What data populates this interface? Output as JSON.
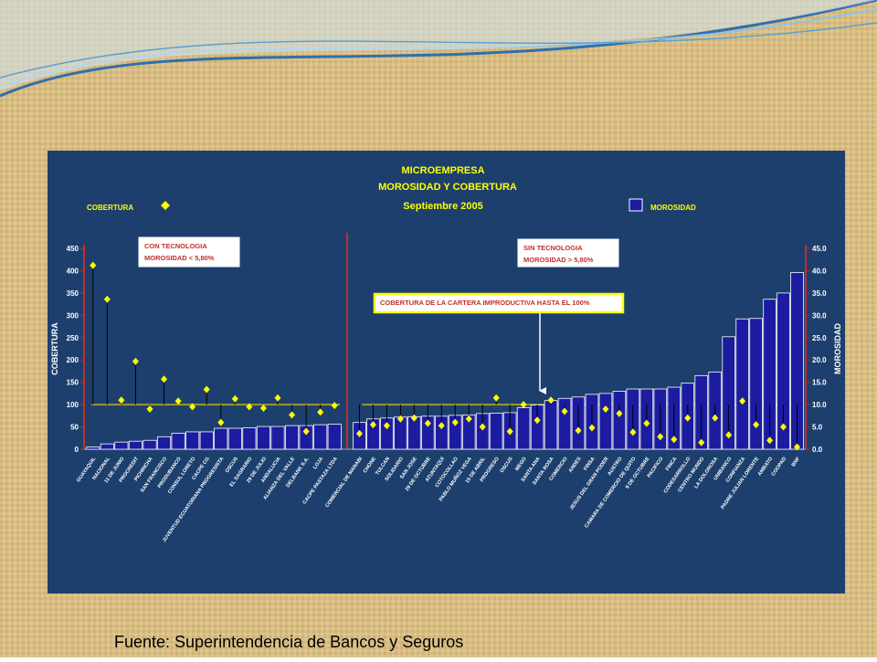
{
  "chart_data": {
    "type": "bar-scatter",
    "title": "MICROEMPRESA",
    "subtitle": "MOROSIDAD Y COBERTURA",
    "date": "Septiembre 2005",
    "ylabel": "COBERTURA",
    "y2label": "MOROSIDAD",
    "categories": [
      "GUAYAQUIL",
      "NACIONAL",
      "11 DE JUNIO",
      "PROCREDIT",
      "PICHINCHA",
      "SAN FRANCISCO",
      "PRODUBANCO",
      "CONSUL LORETO",
      "CACPE CG",
      "JUVENTUD ECUATORIANA PROGRESISTA",
      "OSCUS",
      "EL SAGRARIO",
      "29 DE JULIO",
      "ANDALUCIA",
      "ALIANZA DEL VALLE",
      "DELBANK S.A.",
      "LOJA",
      "CACPE PASTAZA LTDA",
      "COMERCIAL DE MANABI",
      "CHONE",
      "TULCAN",
      "SOLIDARIO",
      "SAN JOSE",
      "29 DE OCTUBRE",
      "ATUNTAQUI",
      "COTOCOLLAO",
      "PABLO MUÑOZ VEGA",
      "15 DE ABRIL",
      "PROGRESO",
      "OSCUS",
      "MEGO",
      "SANTA ANA",
      "SANTA ROSA",
      "COMERCIO",
      "ANDES",
      "FINSA",
      "JESUS DEL GRAN PODER",
      "AUSTRO",
      "CAMARA DE COMERCIO DE QUITO",
      "9 DE OCTUBRE",
      "PACIFICO",
      "FINCA",
      "CODESARROLLO",
      "CENTRO MUNDO",
      "LA DOLOROSA",
      "UNIBANCO",
      "CONFIANZA",
      "PADRE JULIAN LORENTE",
      "AMBATO",
      "COOPAD",
      "BNF"
    ],
    "series": [
      {
        "name": "COBERTURA",
        "color": "#ffff00",
        "values": [
          412,
          336,
          110,
          197,
          90,
          157,
          108,
          95,
          134,
          60,
          113,
          95,
          92,
          115,
          77,
          40,
          83,
          98,
          35,
          55,
          53,
          68,
          70,
          58,
          53,
          60,
          68,
          50,
          115,
          40,
          100,
          65,
          110,
          85,
          42,
          48,
          90,
          80,
          38,
          58,
          28,
          22,
          70,
          15,
          70,
          32,
          108,
          55,
          20,
          50,
          5
        ]
      },
      {
        "name": "MOROSIDAD",
        "color": "#1c1ca0",
        "axis": "y2",
        "values": [
          0.5,
          1.2,
          1.6,
          1.8,
          2.0,
          2.8,
          3.6,
          3.9,
          3.9,
          4.7,
          4.7,
          4.8,
          5.1,
          5.1,
          5.3,
          5.3,
          5.5,
          5.6,
          6.0,
          6.8,
          7.0,
          7.2,
          7.3,
          7.4,
          7.4,
          7.6,
          7.7,
          8.0,
          8.1,
          8.2,
          9.3,
          9.9,
          10.9,
          11.4,
          11.7,
          12.3,
          12.5,
          13.0,
          13.5,
          13.5,
          13.5,
          13.9,
          14.8,
          16.5,
          17.3,
          25.2,
          29.2,
          29.3,
          33.6,
          35.0,
          39.6
        ]
      }
    ],
    "reference_line": 100,
    "ylim": [
      0,
      450
    ],
    "yticks": [
      0,
      50,
      100,
      150,
      200,
      250,
      300,
      350,
      400,
      450
    ],
    "y2lim": [
      0,
      45
    ],
    "y2ticks": [
      {
        "value": 0,
        "label": "0.0"
      },
      {
        "value": 5,
        "label": "5.0"
      },
      {
        "value": 10,
        "label": "10.0"
      },
      {
        "value": 15,
        "label": "15.0"
      },
      {
        "value": 20,
        "label": "20.0"
      },
      {
        "value": 25,
        "label": "25.0"
      },
      {
        "value": 30,
        "label": "30.0"
      },
      {
        "value": 35,
        "label": "35.0"
      },
      {
        "value": 40,
        "label": "40.0"
      },
      {
        "value": 45,
        "label": "45.0"
      }
    ],
    "annotations": [
      {
        "lines": [
          "CON TECNOLOGIA",
          "MOROSIDAD < 5,80%"
        ]
      },
      {
        "lines": [
          "SIN TECNOLOGIA",
          "MOROSIDAD > 5,80%"
        ]
      },
      {
        "lines": [
          "COBERTURA DE LA CARTERA IMPRODUCTIVA HASTA EL 100%"
        ]
      }
    ]
  },
  "footer": "Fuente:  Superintendencia de Bancos y Seguros"
}
